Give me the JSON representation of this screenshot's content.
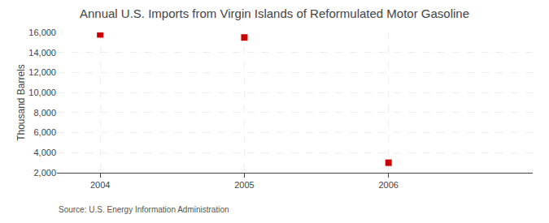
{
  "chart_data": {
    "type": "scatter",
    "title": "Annual U.S. Imports from Virgin Islands of Reformulated Motor Gasoline",
    "ylabel": "Thousand Barrels",
    "annotations": [
      "Source: U.S. Energy Information Administration"
    ],
    "x": [
      2004,
      2005,
      2006
    ],
    "values": [
      15800,
      15497,
      3000
    ],
    "color": "#cc0000",
    "marker": "square",
    "xlim": [
      2003.7,
      2007.0
    ],
    "xticks": [
      2004,
      2005,
      2006
    ],
    "ylim": [
      2000,
      16000
    ],
    "yticks": [
      {
        "value": 2000,
        "label": "2,000"
      },
      {
        "value": 4000,
        "label": "4,000"
      },
      {
        "value": 6000,
        "label": "6,000"
      },
      {
        "value": 8000,
        "label": "8,000"
      },
      {
        "value": 10000,
        "label": "10,000"
      },
      {
        "value": 12000,
        "label": "12,000"
      },
      {
        "value": 14000,
        "label": "14,000"
      },
      {
        "value": 16000,
        "label": "16,000"
      }
    ],
    "grid": true
  }
}
